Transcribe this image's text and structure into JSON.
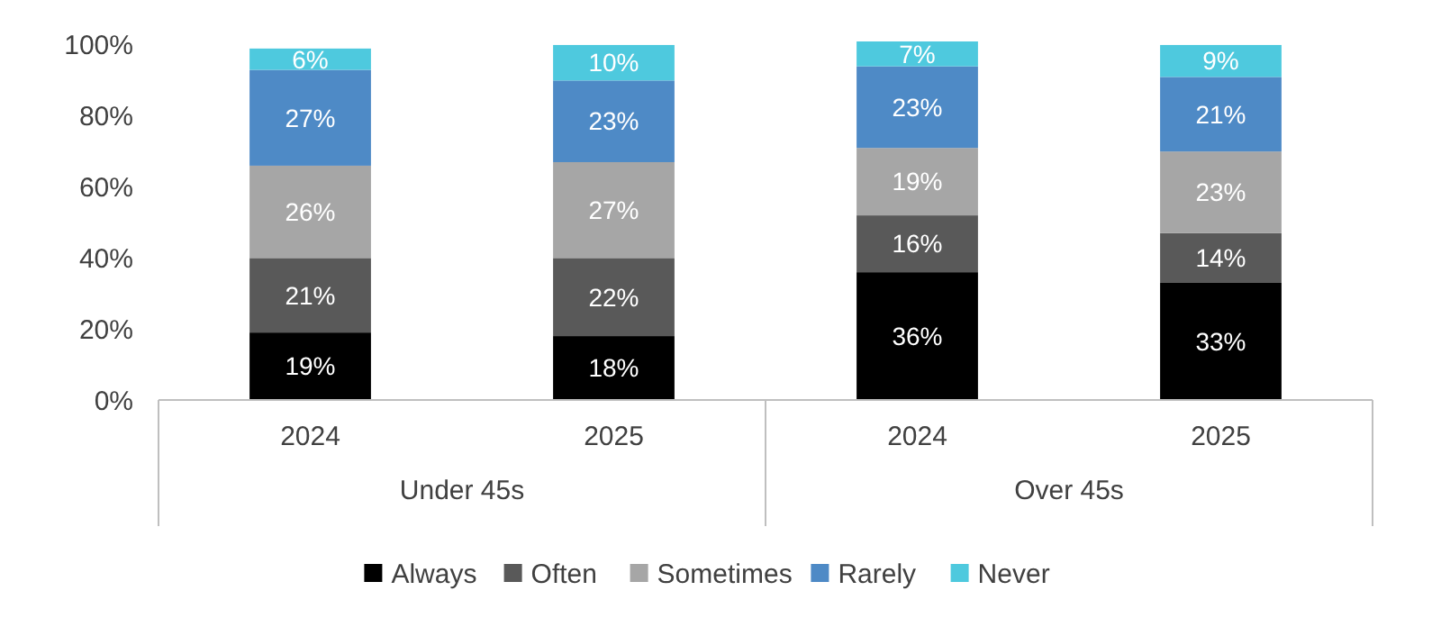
{
  "chart_data": {
    "type": "bar",
    "stacked": true,
    "categories": [
      "2024",
      "2025",
      "2024",
      "2025"
    ],
    "annotations": [
      "Under 45s",
      "Over 45s"
    ],
    "series": [
      {
        "name": "Always",
        "color": "#000000",
        "values": [
          19,
          18,
          36,
          33
        ],
        "value_labels": [
          "19%",
          "18%",
          "36%",
          "33%"
        ]
      },
      {
        "name": "Often",
        "color": "#595959",
        "values": [
          21,
          22,
          16,
          14
        ],
        "value_labels": [
          "21%",
          "22%",
          "16%",
          "14%"
        ]
      },
      {
        "name": "Sometimes",
        "color": "#a6a6a6",
        "values": [
          26,
          27,
          19,
          23
        ],
        "value_labels": [
          "26%",
          "27%",
          "19%",
          "23%"
        ]
      },
      {
        "name": "Rarely",
        "color": "#4e8ac6",
        "values": [
          27,
          23,
          23,
          21
        ],
        "value_labels": [
          "27%",
          "23%",
          "23%",
          "21%"
        ]
      },
      {
        "name": "Never",
        "color": "#4ec9de",
        "values": [
          6,
          10,
          7,
          9
        ],
        "value_labels": [
          "6%",
          "10%",
          "7%",
          "9%"
        ]
      }
    ],
    "ylim": [
      0,
      101
    ],
    "yticks": [
      {
        "value": 0,
        "label": "0%"
      },
      {
        "value": 20,
        "label": "20%"
      },
      {
        "value": 40,
        "label": "40%"
      },
      {
        "value": 60,
        "label": "60%"
      },
      {
        "value": 80,
        "label": "80%"
      },
      {
        "value": 100,
        "label": "100%"
      }
    ],
    "grid": false,
    "legend": "bottom"
  }
}
